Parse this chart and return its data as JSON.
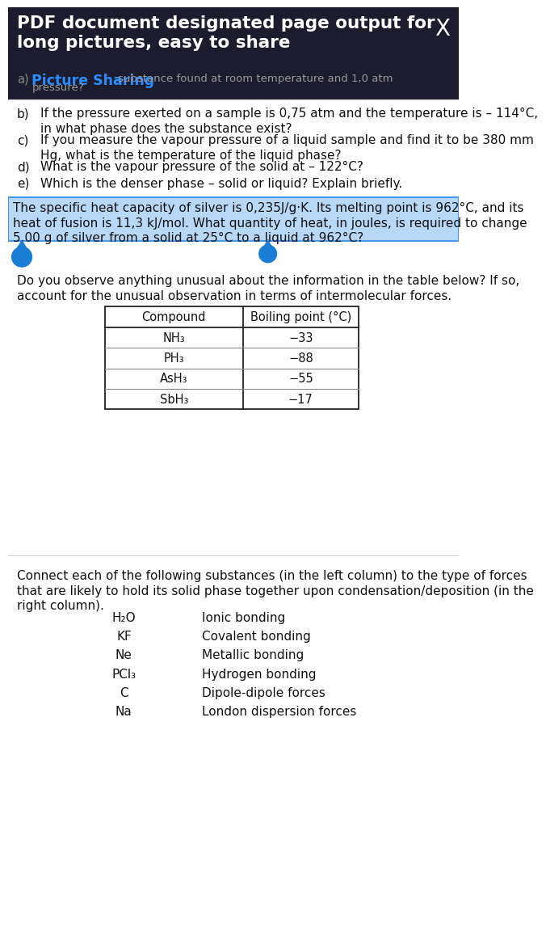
{
  "bg_color": "#ffffff",
  "overlay_bg": "#1c1c2e",
  "overlay_text_title": "PDF document designated page output for\nlong pictures, easy to share",
  "overlay_close": "X",
  "overlay_subtitle_color": "#2b8cff",
  "overlay_subtitle": "Picture Sharing",
  "overlay_faded_text": "substance found at room temperature and 1,0 atm",
  "overlay_faded_text2": "pressure?",
  "questions": [
    {
      "label": "b)",
      "text": "If the pressure exerted on a sample is 0,75 atm and the temperature is – 114°C,\nin what phase does the substance exist?"
    },
    {
      "label": "c)",
      "text": "If you measure the vapour pressure of a liquid sample and find it to be 380 mm\nHg, what is the temperature of the liquid phase?"
    },
    {
      "label": "d)",
      "text": "What is the vapour pressure of the solid at – 122°C?"
    },
    {
      "label": "e)",
      "text": "Which is the denser phase – solid or liquid? Explain briefly."
    }
  ],
  "highlight_text_line1": "The specific heat capacity of silver is 0,235J/g·K. Its melting point is 962°C, and its",
  "highlight_text_line2": "heat of fusion is 11,3 kJ/mol. What quantity of heat, in joules, is required to change",
  "highlight_text_line3": "5,00 g of silver from a solid at 25°C to a liquid at 962°C?",
  "highlight_bg": "#b8d8f8",
  "highlight_border": "#4499ee",
  "drop_circle_color": "#1a7fd4",
  "question2_text": "Do you observe anything unusual about the information in the table below? If so,\naccount for the unusual observation in terms of intermolecular forces.",
  "table_compounds": [
    "NH₃",
    "PH₃",
    "AsH₃",
    "SbH₃"
  ],
  "table_bp": [
    "−33",
    "−88",
    "−55",
    "−17"
  ],
  "last_question_intro": "Connect each of the following substances (in the left column) to the type of forces\nthat are likely to hold its solid phase together upon condensation/deposition (in the\nright column).",
  "left_column": [
    "H₂O",
    "KF",
    "Ne",
    "PCl₃",
    "C",
    "Na"
  ],
  "right_column": [
    "Ionic bonding",
    "Covalent bonding",
    "Metallic bonding",
    "Hydrogen bonding",
    "Dipole-dipole forces",
    "London dispersion forces"
  ],
  "text_color": "#111111"
}
